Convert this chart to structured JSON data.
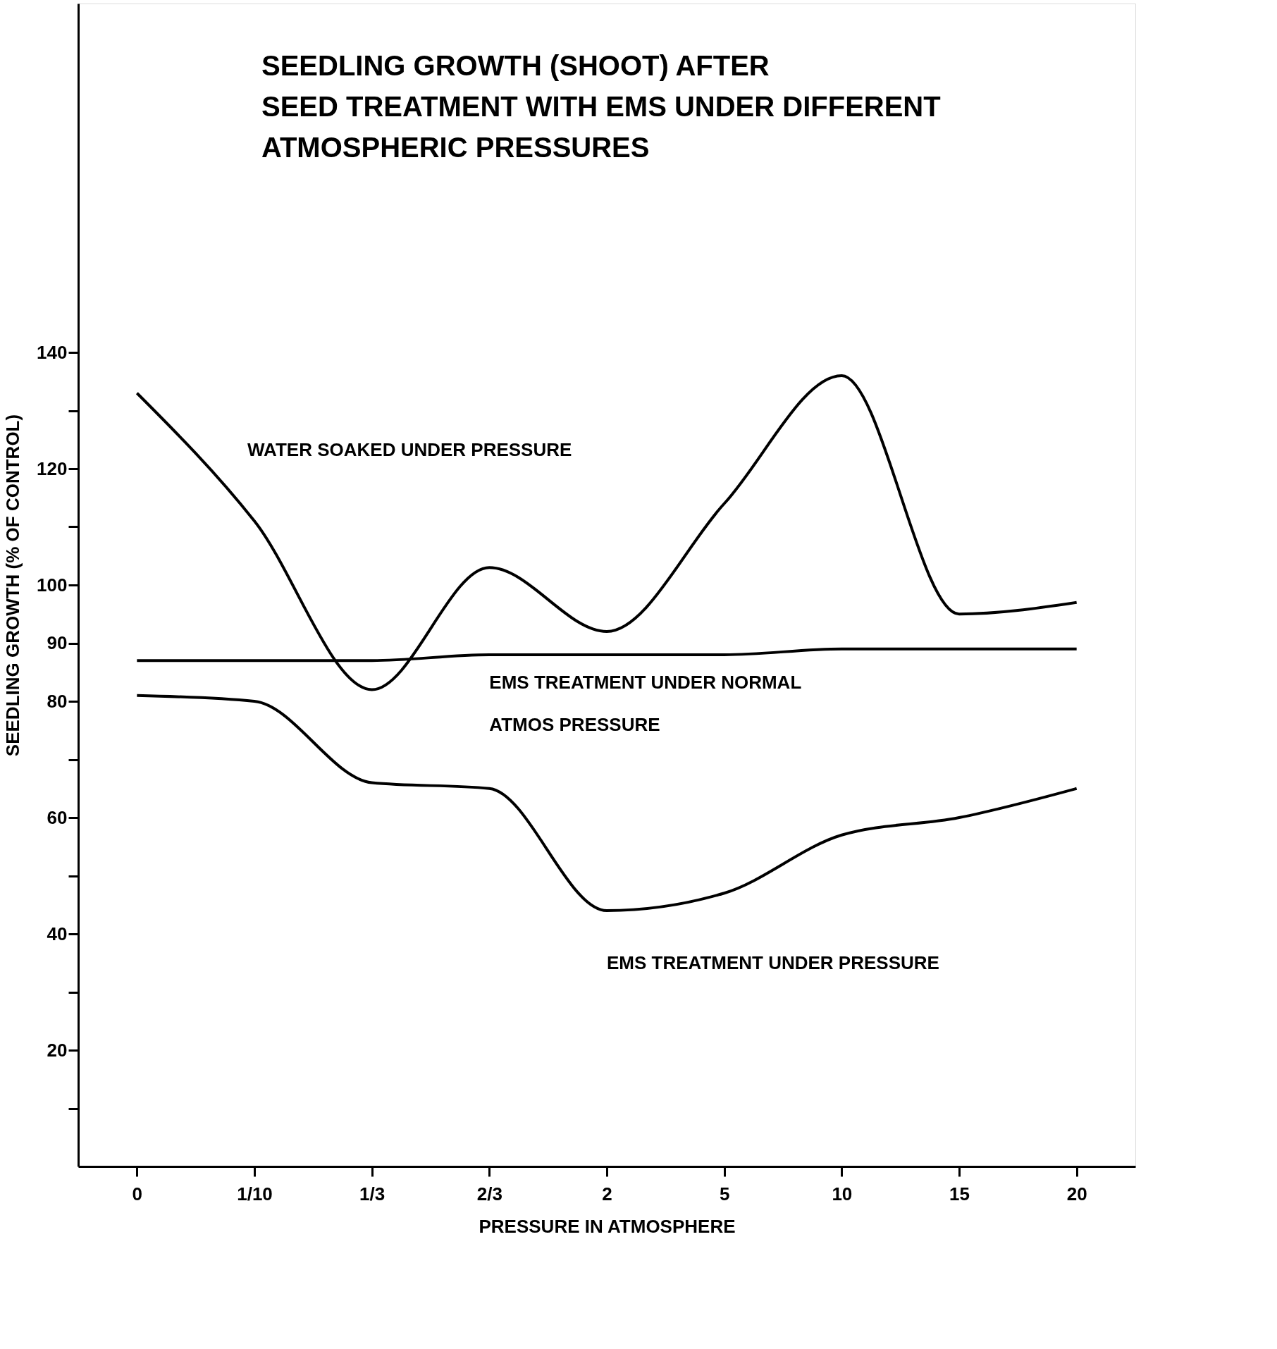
{
  "chart_data": {
    "type": "line",
    "title": "SEEDLING GROWTH (SHOOT) AFTER SEED TREATMENT WITH EMS UNDER DIFFERENT ATMOSPHERIC PRESSURES",
    "xlabel": "PRESSURE IN ATMOSPHERE",
    "ylabel": "SEEDLING GROWTH (% OF CONTROL)",
    "categories": [
      "0",
      "1/10",
      "1/3",
      "2/3",
      "2",
      "5",
      "10",
      "15",
      "20"
    ],
    "series": [
      {
        "name": "WATER SOAKED UNDER PRESSURE",
        "color": "#000000",
        "values": [
          133,
          111,
          82,
          103,
          92,
          114,
          136,
          95,
          97
        ]
      },
      {
        "name": "EMS TREATMENT UNDER NORMAL ATMOS PRESSURE",
        "color": "#000000",
        "values": [
          87,
          87,
          87,
          88,
          88,
          88,
          89,
          89,
          89
        ]
      },
      {
        "name": "EMS TREATMENT UNDER PRESSURE",
        "color": "#000000",
        "values": [
          81,
          80,
          66,
          65,
          44,
          47,
          57,
          60,
          65
        ]
      }
    ],
    "ylim": [
      0,
      200
    ],
    "yticks": [
      {
        "value": 10,
        "label": null
      },
      20,
      {
        "value": 30,
        "label": null
      },
      40,
      {
        "value": 50,
        "label": null
      },
      60,
      {
        "value": 70,
        "label": null
      },
      80,
      90,
      100,
      {
        "value": 110,
        "label": null
      },
      120,
      {
        "value": 130,
        "label": null
      },
      140
    ],
    "grid": false,
    "legend": false,
    "marker": "none",
    "line_style": "solid"
  }
}
